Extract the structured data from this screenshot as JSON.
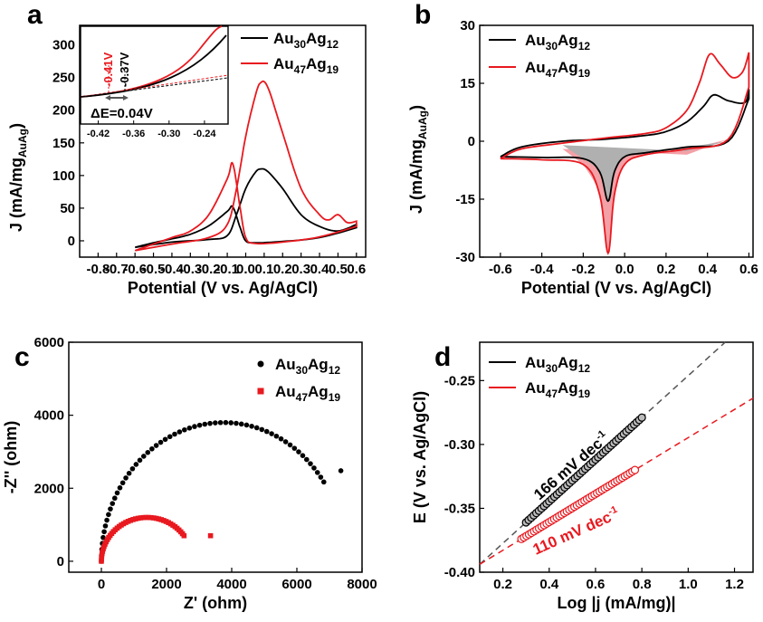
{
  "colors": {
    "black_series": "#000000",
    "red_series": "#e8191f",
    "fill_red": "#f3a0a6",
    "fill_gray": "#b0b0b0"
  },
  "chart_data": [
    {
      "panel": "a",
      "type": "line",
      "xlabel": "Potential (V vs. Ag/AgCl)",
      "ylabel": "J (mA/mg",
      "ylabel_sub": "AuAg",
      "ylabel_end": ")",
      "xlim": [
        -0.9,
        0.65
      ],
      "ylim": [
        -25,
        330
      ],
      "xticks": [
        "-0.8",
        "-0.7",
        "-0.6",
        "-0.5",
        "-0.4",
        "-0.3",
        "-0.2",
        "-0.1",
        "0.0",
        "0.1",
        "0.2",
        "0.3",
        "0.4",
        "0.5",
        "0.6"
      ],
      "yticks": [
        "0",
        "50",
        "100",
        "150",
        "200",
        "250",
        "300"
      ],
      "series": [
        {
          "name_base": "Au",
          "name_sub1": "30",
          "name_mid": "Ag",
          "name_sub2": "12",
          "color": "black",
          "forward": [
            [
              -0.6,
              -10
            ],
            [
              -0.4,
              -2
            ],
            [
              -0.2,
              2
            ],
            [
              -0.1,
              8
            ],
            [
              -0.05,
              40
            ],
            [
              0.0,
              80
            ],
            [
              0.05,
              104
            ],
            [
              0.08,
              110
            ],
            [
              0.12,
              106
            ],
            [
              0.2,
              80
            ],
            [
              0.3,
              40
            ],
            [
              0.4,
              22
            ],
            [
              0.5,
              15
            ],
            [
              0.6,
              25
            ]
          ],
          "reverse": [
            [
              0.6,
              20
            ],
            [
              0.4,
              5
            ],
            [
              0.2,
              -1
            ],
            [
              0.05,
              -3
            ],
            [
              0.0,
              0
            ],
            [
              -0.03,
              20
            ],
            [
              -0.07,
              52
            ],
            [
              -0.1,
              45
            ],
            [
              -0.2,
              23
            ],
            [
              -0.3,
              10
            ],
            [
              -0.4,
              3
            ],
            [
              -0.5,
              -3
            ],
            [
              -0.6,
              -10
            ]
          ]
        },
        {
          "name_base": "Au",
          "name_sub1": "47",
          "name_mid": "Ag",
          "name_sub2": "19",
          "color": "red",
          "forward": [
            [
              -0.6,
              -15
            ],
            [
              -0.4,
              -5
            ],
            [
              -0.2,
              5
            ],
            [
              -0.1,
              25
            ],
            [
              -0.05,
              80
            ],
            [
              0.0,
              160
            ],
            [
              0.05,
              220
            ],
            [
              0.08,
              242
            ],
            [
              0.12,
              235
            ],
            [
              0.2,
              165
            ],
            [
              0.3,
              80
            ],
            [
              0.4,
              40
            ],
            [
              0.45,
              32
            ],
            [
              0.5,
              40
            ],
            [
              0.55,
              28
            ],
            [
              0.6,
              30
            ]
          ],
          "reverse": [
            [
              0.6,
              22
            ],
            [
              0.4,
              6
            ],
            [
              0.2,
              -2
            ],
            [
              0.05,
              -4
            ],
            [
              0.0,
              5
            ],
            [
              -0.03,
              50
            ],
            [
              -0.07,
              118
            ],
            [
              -0.1,
              95
            ],
            [
              -0.2,
              40
            ],
            [
              -0.3,
              15
            ],
            [
              -0.4,
              5
            ],
            [
              -0.5,
              -5
            ],
            [
              -0.6,
              -15
            ]
          ]
        }
      ],
      "inset": {
        "xticks": [
          "-0.42",
          "-0.36",
          "-0.30",
          "-0.24"
        ],
        "xlim": [
          -0.45,
          -0.2
        ],
        "annot_red": "-0.41V",
        "annot_black": "-0.37V",
        "annot_delta": "ΔE=0.04V"
      }
    },
    {
      "panel": "b",
      "type": "line",
      "xlabel": "Potential (V vs. Ag/AgCl)",
      "ylabel": "J (mA/mg",
      "ylabel_sub": "AuAg",
      "ylabel_end": ")",
      "xlim": [
        -0.7,
        0.62
      ],
      "ylim": [
        -30,
        30
      ],
      "xticks": [
        "-0.6",
        "-0.4",
        "-0.2",
        "0.0",
        "0.2",
        "0.4",
        "0.6"
      ],
      "yticks": [
        "-30",
        "-15",
        "0",
        "15",
        "30"
      ],
      "series": [
        {
          "name_base": "Au",
          "name_sub1": "30",
          "name_mid": "Ag",
          "name_sub2": "12",
          "color": "black",
          "forward": [
            [
              -0.6,
              -4
            ],
            [
              -0.5,
              -1.5
            ],
            [
              -0.3,
              0
            ],
            [
              -0.1,
              0.5
            ],
            [
              0.1,
              1.5
            ],
            [
              0.2,
              2.5
            ],
            [
              0.3,
              5
            ],
            [
              0.38,
              9
            ],
            [
              0.43,
              12
            ],
            [
              0.5,
              10.5
            ],
            [
              0.58,
              10
            ],
            [
              0.6,
              13.5
            ]
          ],
          "reverse": [
            [
              0.6,
              11
            ],
            [
              0.5,
              0
            ],
            [
              0.3,
              -1.5
            ],
            [
              0.1,
              -3
            ],
            [
              0.0,
              -4
            ],
            [
              -0.05,
              -8
            ],
            [
              -0.08,
              -15.5
            ],
            [
              -0.12,
              -8
            ],
            [
              -0.2,
              -4.5
            ],
            [
              -0.4,
              -4.2
            ],
            [
              -0.6,
              -4
            ]
          ]
        },
        {
          "name_base": "Au",
          "name_sub1": "47",
          "name_mid": "Ag",
          "name_sub2": "19",
          "color": "red",
          "forward": [
            [
              -0.6,
              -4.5
            ],
            [
              -0.5,
              -2
            ],
            [
              -0.3,
              -0.5
            ],
            [
              -0.1,
              0.8
            ],
            [
              0.1,
              2
            ],
            [
              0.2,
              3.5
            ],
            [
              0.3,
              8
            ],
            [
              0.36,
              15
            ],
            [
              0.41,
              22.5
            ],
            [
              0.46,
              20
            ],
            [
              0.52,
              16.5
            ],
            [
              0.57,
              18
            ],
            [
              0.6,
              23
            ]
          ],
          "reverse": [
            [
              0.6,
              14
            ],
            [
              0.5,
              0.5
            ],
            [
              0.3,
              -2
            ],
            [
              0.1,
              -3.5
            ],
            [
              0.0,
              -6
            ],
            [
              -0.05,
              -14
            ],
            [
              -0.08,
              -29
            ],
            [
              -0.12,
              -14
            ],
            [
              -0.2,
              -6
            ],
            [
              -0.4,
              -4.8
            ],
            [
              -0.6,
              -4.5
            ]
          ]
        }
      ]
    },
    {
      "panel": "c",
      "type": "scatter",
      "xlabel": "Z' (ohm)",
      "ylabel": "-Z'' (ohm)",
      "xlim": [
        -1000,
        8000
      ],
      "ylim": [
        -300,
        6000
      ],
      "xticks": [
        "0",
        "2000",
        "4000",
        "6000",
        "8000"
      ],
      "yticks": [
        "0",
        "2000",
        "4000",
        "6000"
      ],
      "series": [
        {
          "name_base": "Au",
          "name_sub1": "30",
          "name_mid": "Ag",
          "name_sub2": "12",
          "color": "black",
          "marker": "circle",
          "center": 3750,
          "radius": 3750,
          "max": 3800,
          "x_end": 7350,
          "y_end": 2480
        },
        {
          "name_base": "Au",
          "name_sub1": "47",
          "name_mid": "Ag",
          "name_sub2": "19",
          "color": "red",
          "marker": "square",
          "center": 1400,
          "radius": 1400,
          "max": 1200,
          "x_end": 3350,
          "y_end": 700
        }
      ]
    },
    {
      "panel": "d",
      "type": "scatter",
      "xlabel": "Log |j (mA/mg)|",
      "ylabel": "E (V vs. Ag/AgCl)",
      "xlim": [
        0.1,
        1.28
      ],
      "ylim": [
        -0.4,
        -0.22
      ],
      "xticks": [
        "0.2",
        "0.4",
        "0.6",
        "0.8",
        "1.0",
        "1.2"
      ],
      "yticks": [
        "-0.40",
        "-0.35",
        "-0.30",
        "-0.25"
      ],
      "series": [
        {
          "name_base": "Au",
          "name_sub1": "30",
          "name_mid": "Ag",
          "name_sub2": "12",
          "color": "black",
          "x_range": [
            0.3,
            0.8
          ],
          "y_range": [
            -0.361,
            -0.279
          ],
          "slope_label": "166 mV dec",
          "slope_sup": "-1"
        },
        {
          "name_base": "Au",
          "name_sub1": "47",
          "name_mid": "Ag",
          "name_sub2": "19",
          "color": "red",
          "x_range": [
            0.28,
            0.77
          ],
          "y_range": [
            -0.374,
            -0.32
          ],
          "slope_label": "110 mV dec",
          "slope_sup": "-1"
        }
      ]
    }
  ]
}
